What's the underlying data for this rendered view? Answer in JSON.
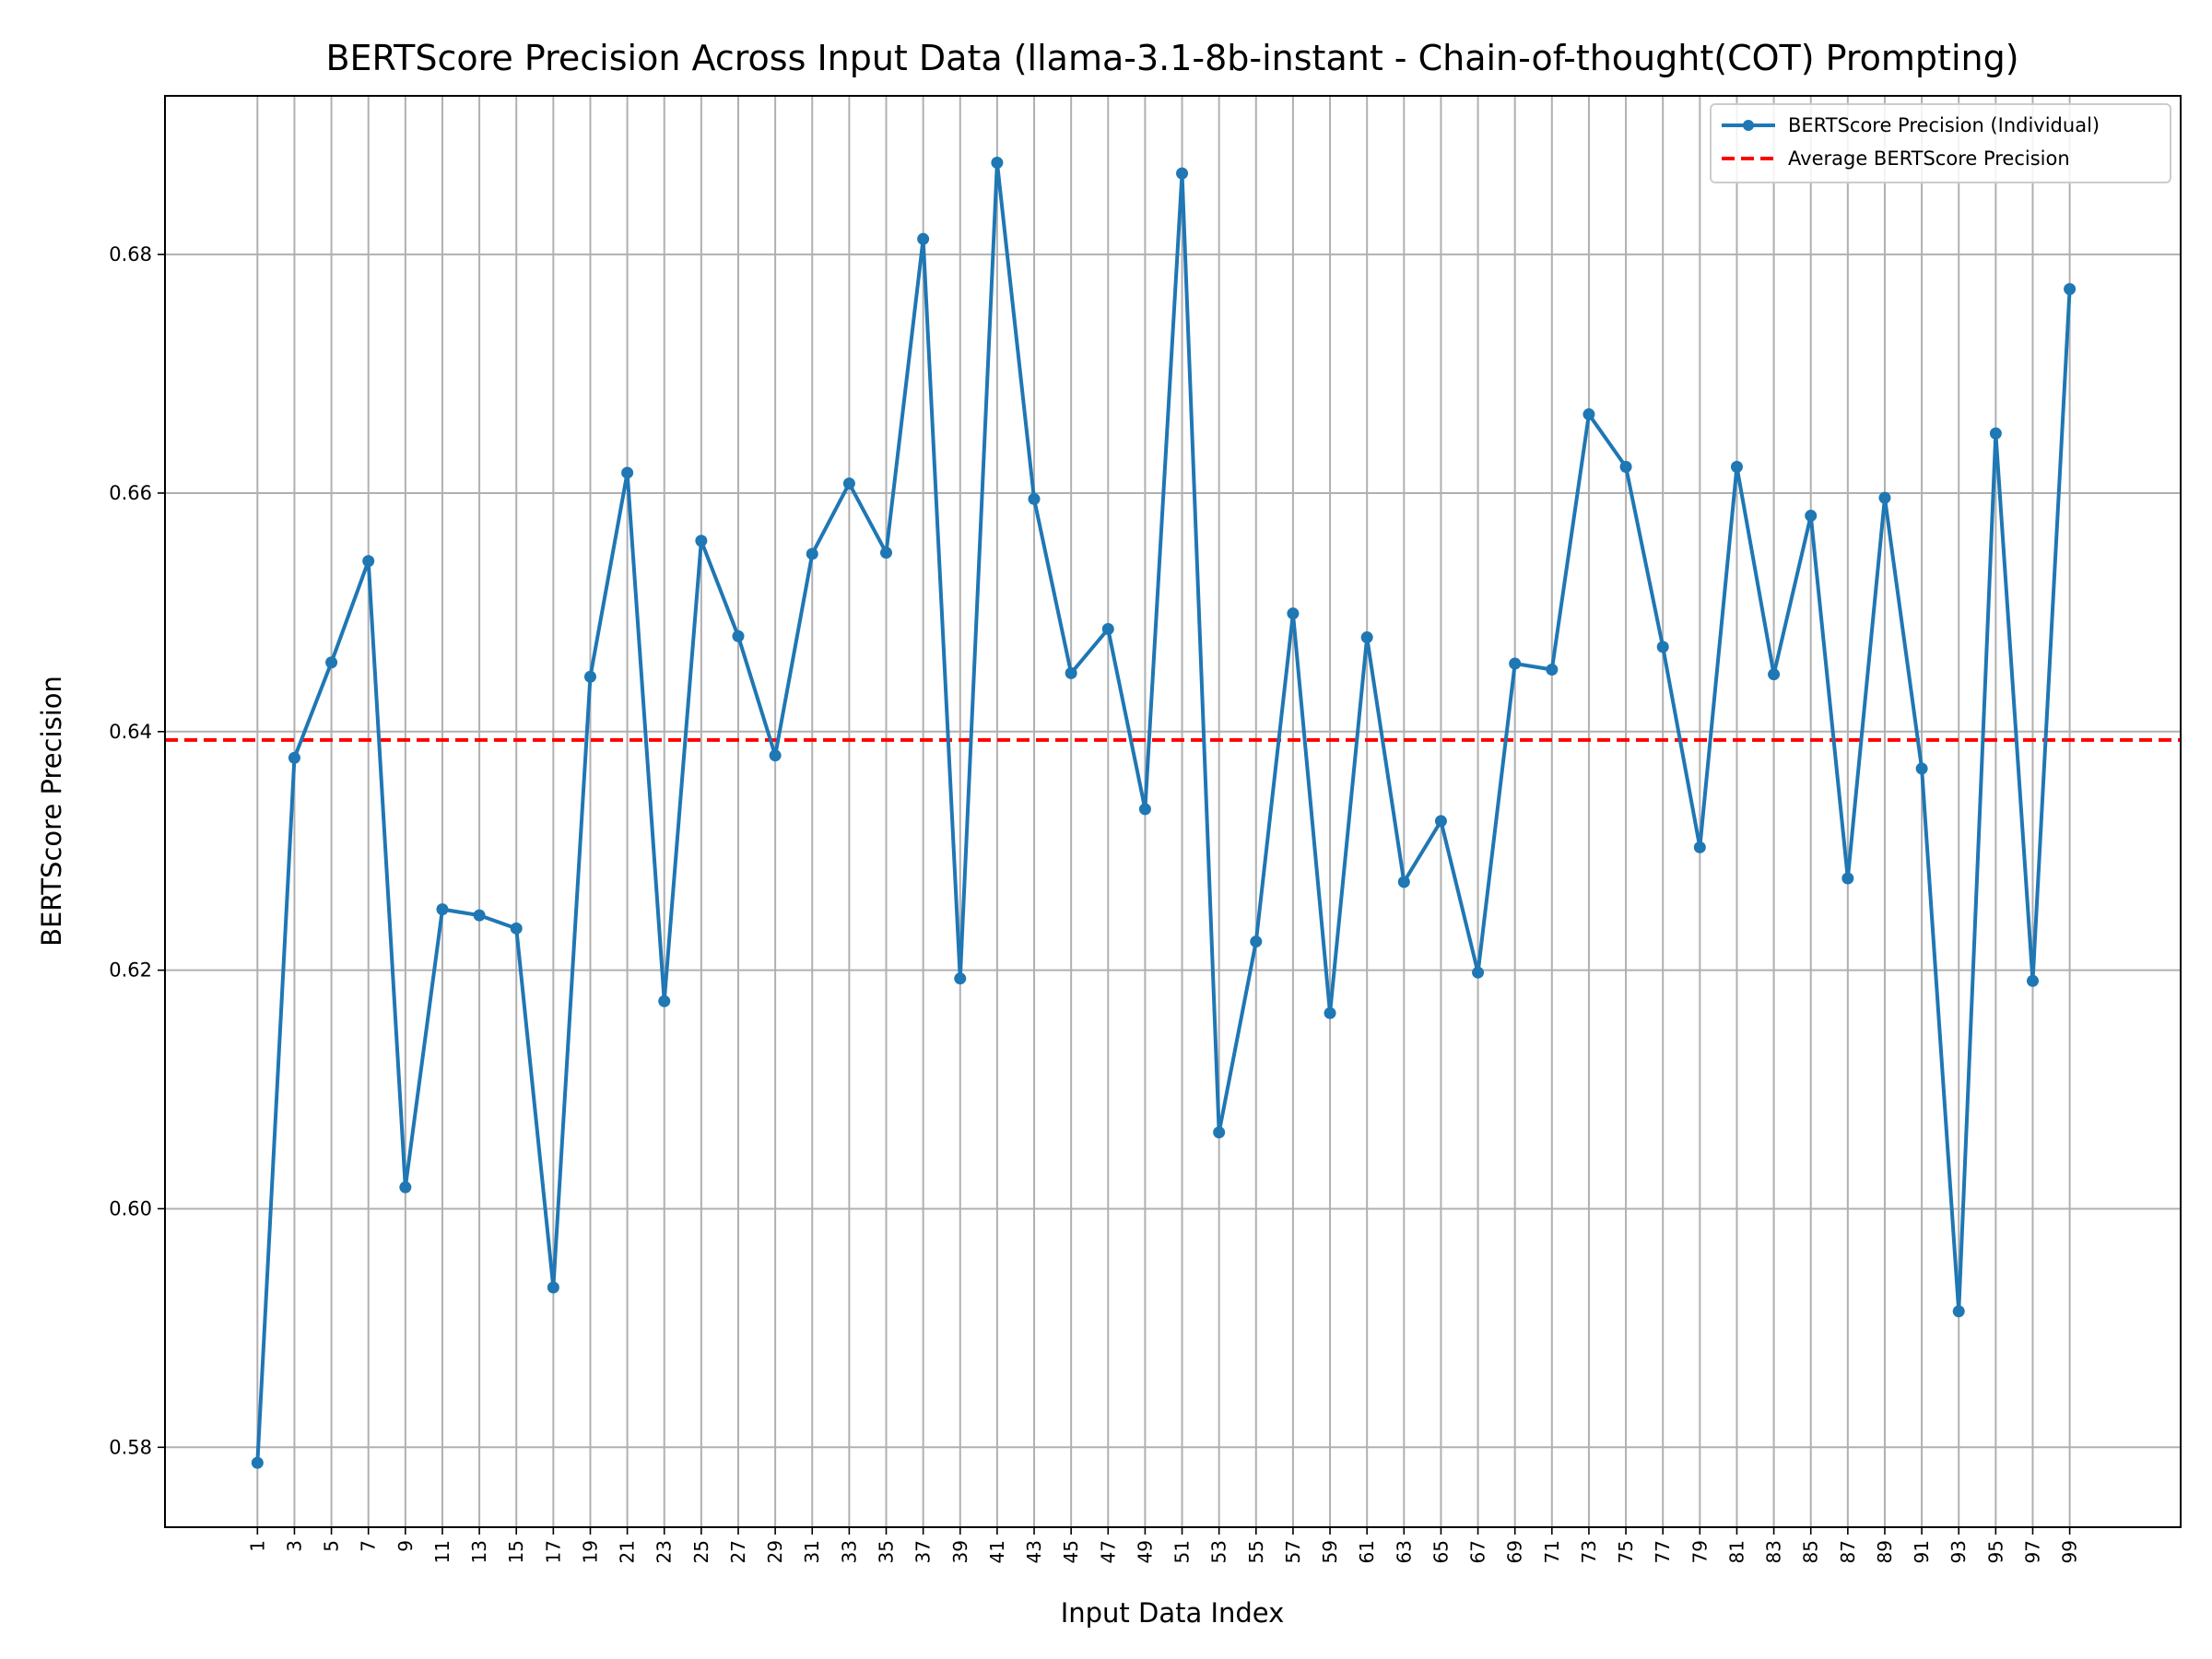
{
  "chart_data": {
    "type": "line",
    "title": "BERTScore Precision Across Input Data (llama-3.1-8b-instant - Chain-of-thought(COT) Prompting)",
    "xlabel": "Input Data Index",
    "ylabel": "BERTScore Precision",
    "x": [
      1,
      3,
      5,
      7,
      9,
      11,
      13,
      15,
      17,
      19,
      21,
      23,
      25,
      27,
      29,
      31,
      33,
      35,
      37,
      39,
      41,
      43,
      45,
      47,
      49,
      51,
      53,
      55,
      57,
      59,
      61,
      63,
      65,
      67,
      69,
      71,
      73,
      75,
      77,
      79,
      81,
      83,
      85,
      87,
      89,
      91,
      93,
      95,
      97,
      99
    ],
    "xticks": [
      "1",
      "3",
      "5",
      "7",
      "9",
      "11",
      "13",
      "15",
      "17",
      "19",
      "21",
      "23",
      "25",
      "27",
      "29",
      "31",
      "33",
      "35",
      "37",
      "39",
      "41",
      "43",
      "45",
      "47",
      "49",
      "51",
      "53",
      "55",
      "57",
      "59",
      "61",
      "63",
      "65",
      "67",
      "69",
      "71",
      "73",
      "75",
      "77",
      "79",
      "81",
      "83",
      "85",
      "87",
      "89",
      "91",
      "93",
      "95",
      "97",
      "99"
    ],
    "yticks": [
      "0.58",
      "0.60",
      "0.62",
      "0.64",
      "0.66",
      "0.68"
    ],
    "ylim": [
      0.5733,
      0.6933
    ],
    "xlim": [
      -4,
      105
    ],
    "grid": true,
    "legend_position": "top-right",
    "series": [
      {
        "name": "BERTScore Precision (Individual)",
        "color": "#1f77b4",
        "values": [
          0.5787,
          0.6378,
          0.6458,
          0.6543,
          0.6018,
          0.6251,
          0.6246,
          0.6235,
          0.5934,
          0.6446,
          0.6617,
          0.6174,
          0.656,
          0.648,
          0.638,
          0.6549,
          0.6608,
          0.655,
          0.6813,
          0.6193,
          0.6877,
          0.6595,
          0.6449,
          0.6486,
          0.6335,
          0.6868,
          0.6064,
          0.6224,
          0.6499,
          0.6164,
          0.6479,
          0.6274,
          0.6325,
          0.6198,
          0.6457,
          0.6452,
          0.6666,
          0.6622,
          0.6471,
          0.6303,
          0.6622,
          0.6448,
          0.6581,
          0.6277,
          0.6596,
          0.6369,
          0.5914,
          0.665,
          0.6191,
          0.6771
        ]
      },
      {
        "name": "Average BERTScore Precision",
        "color": "#ff0000",
        "style": "dashed",
        "value": 0.6393
      }
    ]
  }
}
